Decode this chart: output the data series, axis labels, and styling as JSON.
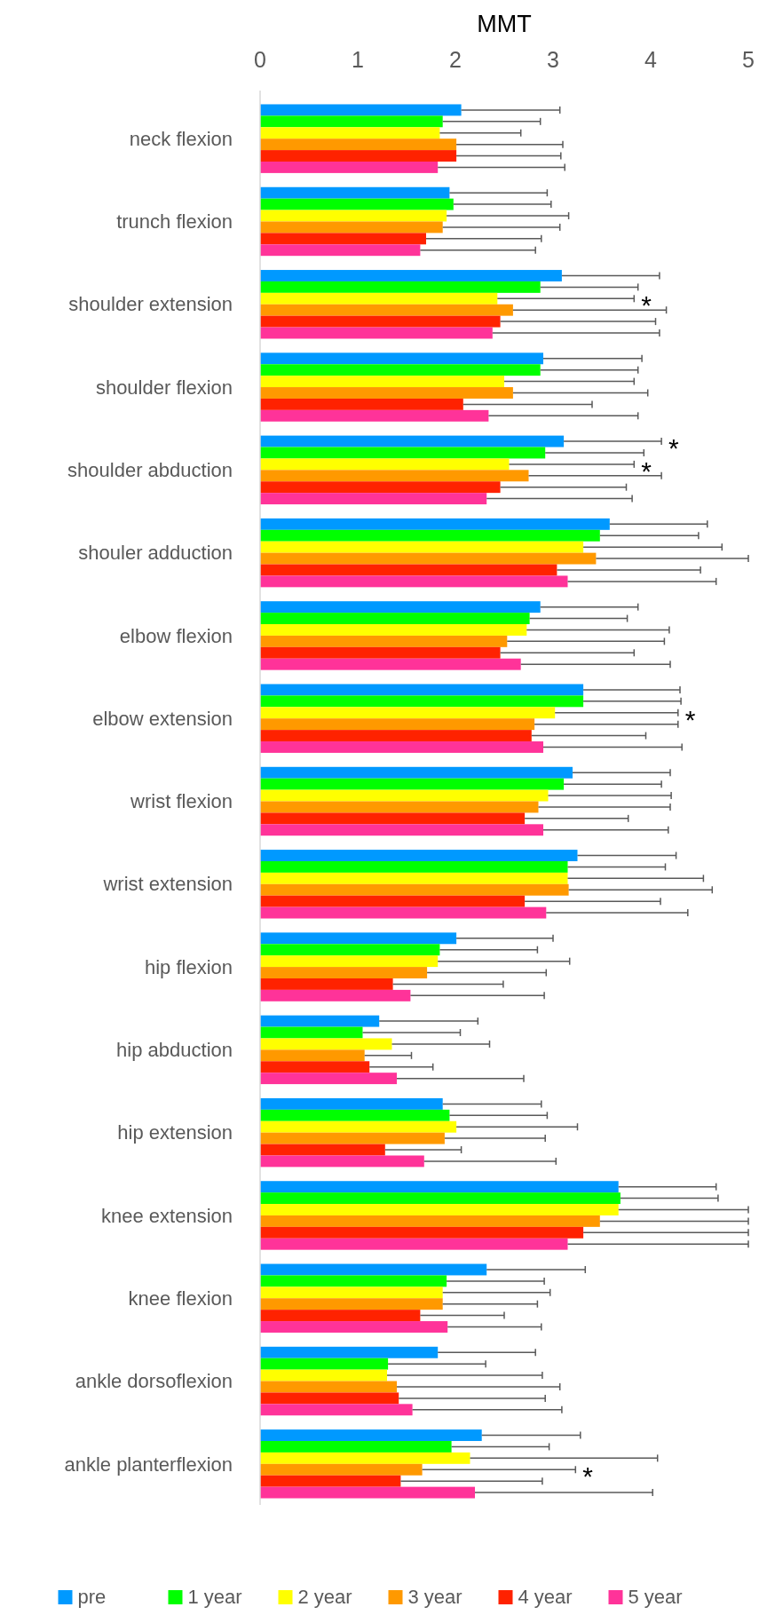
{
  "chart_data": {
    "type": "bar",
    "orientation": "horizontal",
    "xlabel": "MMT",
    "xlim": [
      0,
      5
    ],
    "xticks": [
      0,
      1,
      2,
      3,
      4,
      5
    ],
    "grid": false,
    "legend": "bottom",
    "categories": [
      "neck flexion",
      "trunch flexion",
      "shoulder extension",
      "shoulder flexion",
      "shoulder abduction",
      "shouler adduction",
      "elbow flexion",
      "elbow extension",
      "wrist flexion",
      "wrist extension",
      "hip flexion",
      "hip abduction",
      "hip extension",
      "knee extension",
      "knee flexion",
      "ankle dorsoflexion",
      "ankle planterflexion"
    ],
    "series": [
      {
        "name": "pre",
        "color": "#0099ff",
        "values": [
          2.06,
          1.94,
          3.09,
          2.9,
          3.11,
          3.58,
          2.87,
          3.31,
          3.2,
          3.25,
          2.01,
          1.22,
          1.87,
          3.67,
          2.32,
          1.82,
          2.27
        ],
        "errors": [
          [
            2.06,
            3.07
          ],
          [
            1.94,
            2.94
          ],
          [
            3.09,
            4.09
          ],
          [
            2.9,
            3.91
          ],
          [
            3.11,
            4.11
          ],
          [
            3.58,
            4.58
          ],
          [
            2.87,
            3.87
          ],
          [
            3.31,
            4.3
          ],
          [
            3.2,
            4.2
          ],
          [
            3.25,
            4.26
          ],
          [
            2.01,
            3.0
          ],
          [
            1.22,
            2.23
          ],
          [
            1.87,
            2.88
          ],
          [
            3.67,
            4.67
          ],
          [
            2.32,
            3.33
          ],
          [
            1.82,
            2.82
          ],
          [
            2.27,
            3.28
          ]
        ]
      },
      {
        "name": "1 year",
        "color": "#00ff00",
        "values": [
          1.87,
          1.98,
          2.87,
          2.87,
          2.92,
          3.48,
          2.76,
          3.31,
          3.11,
          3.15,
          1.84,
          1.05,
          1.94,
          3.69,
          1.91,
          1.31,
          1.96
        ],
        "errors": [
          [
            1.87,
            2.87
          ],
          [
            1.98,
            2.98
          ],
          [
            2.87,
            3.87
          ],
          [
            2.87,
            3.87
          ],
          [
            2.92,
            3.93
          ],
          [
            3.48,
            4.49
          ],
          [
            2.76,
            3.76
          ],
          [
            3.31,
            4.31
          ],
          [
            3.11,
            4.11
          ],
          [
            3.15,
            4.15
          ],
          [
            1.84,
            2.84
          ],
          [
            1.05,
            2.05
          ],
          [
            1.94,
            2.94
          ],
          [
            3.69,
            4.69
          ],
          [
            1.91,
            2.91
          ],
          [
            1.31,
            2.31
          ],
          [
            1.96,
            2.96
          ]
        ]
      },
      {
        "name": "2 year",
        "color": "#ffff00",
        "values": [
          1.84,
          1.91,
          2.43,
          2.5,
          2.55,
          3.31,
          2.73,
          3.02,
          2.95,
          3.15,
          1.82,
          1.35,
          2.01,
          3.67,
          1.87,
          1.3,
          2.15
        ],
        "errors": [
          [
            1.84,
            2.67
          ],
          [
            1.91,
            3.16
          ],
          [
            2.43,
            3.83
          ],
          [
            2.5,
            3.83
          ],
          [
            2.55,
            3.83
          ],
          [
            3.31,
            4.73
          ],
          [
            2.73,
            4.19
          ],
          [
            3.02,
            4.28
          ],
          [
            2.95,
            4.21
          ],
          [
            3.15,
            4.54
          ],
          [
            1.82,
            3.17
          ],
          [
            1.35,
            2.35
          ],
          [
            2.01,
            3.25
          ],
          [
            3.67,
            5.0
          ],
          [
            1.87,
            2.97
          ],
          [
            1.3,
            2.89
          ],
          [
            2.15,
            4.07
          ]
        ]
      },
      {
        "name": "3 year",
        "color": "#ff9900",
        "values": [
          2.01,
          1.87,
          2.59,
          2.59,
          2.75,
          3.44,
          2.53,
          2.81,
          2.85,
          3.16,
          1.71,
          1.07,
          1.89,
          3.48,
          1.87,
          1.4,
          1.66
        ],
        "errors": [
          [
            2.01,
            3.1
          ],
          [
            1.87,
            3.07
          ],
          [
            2.59,
            4.16
          ],
          [
            2.59,
            3.97
          ],
          [
            2.75,
            4.11
          ],
          [
            3.44,
            5.0
          ],
          [
            2.53,
            4.14
          ],
          [
            2.81,
            4.28
          ],
          [
            2.85,
            4.2
          ],
          [
            3.16,
            4.63
          ],
          [
            1.71,
            2.93
          ],
          [
            1.07,
            1.55
          ],
          [
            1.89,
            2.92
          ],
          [
            3.48,
            5.0
          ],
          [
            1.87,
            2.84
          ],
          [
            1.4,
            3.07
          ],
          [
            1.66,
            3.23
          ]
        ]
      },
      {
        "name": "4 year",
        "color": "#ff2200",
        "values": [
          2.01,
          1.7,
          2.46,
          2.08,
          2.46,
          3.04,
          2.46,
          2.78,
          2.71,
          2.71,
          1.36,
          1.12,
          1.28,
          3.31,
          1.64,
          1.42,
          1.44
        ],
        "errors": [
          [
            2.01,
            3.08
          ],
          [
            1.7,
            2.88
          ],
          [
            2.46,
            4.05
          ],
          [
            2.08,
            3.4
          ],
          [
            2.46,
            3.75
          ],
          [
            3.04,
            4.51
          ],
          [
            2.46,
            3.83
          ],
          [
            2.78,
            3.95
          ],
          [
            2.71,
            3.77
          ],
          [
            2.71,
            4.1
          ],
          [
            1.36,
            2.49
          ],
          [
            1.12,
            1.77
          ],
          [
            1.28,
            2.06
          ],
          [
            3.31,
            5.0
          ],
          [
            1.64,
            2.5
          ],
          [
            1.42,
            2.92
          ],
          [
            1.44,
            2.89
          ]
        ]
      },
      {
        "name": "5 year",
        "color": "#ff3399",
        "values": [
          1.82,
          1.64,
          2.38,
          2.34,
          2.32,
          3.15,
          2.67,
          2.9,
          2.9,
          2.93,
          1.54,
          1.4,
          1.68,
          3.15,
          1.92,
          1.56,
          2.2
        ],
        "errors": [
          [
            1.82,
            3.12
          ],
          [
            1.64,
            2.82
          ],
          [
            2.38,
            4.09
          ],
          [
            2.34,
            3.87
          ],
          [
            2.32,
            3.81
          ],
          [
            3.15,
            4.67
          ],
          [
            2.67,
            4.2
          ],
          [
            2.9,
            4.32
          ],
          [
            2.9,
            4.18
          ],
          [
            2.93,
            4.38
          ],
          [
            1.54,
            2.91
          ],
          [
            1.4,
            2.7
          ],
          [
            1.68,
            3.03
          ],
          [
            3.15,
            5.0
          ],
          [
            1.92,
            2.88
          ],
          [
            1.56,
            3.09
          ],
          [
            2.2,
            4.02
          ]
        ]
      }
    ],
    "annotations": [
      {
        "text": "*",
        "x": 3.83,
        "y": "shoulder extension"
      },
      {
        "text": "*",
        "x": 4.11,
        "y": "shoulder abduction"
      },
      {
        "text": "*",
        "x": 3.83,
        "y": "shoulder abduction"
      },
      {
        "text": "*",
        "x": 4.28,
        "y": "elbow extension"
      },
      {
        "text": "*",
        "x": 3.23,
        "y": "ankle planterflexion"
      }
    ]
  }
}
